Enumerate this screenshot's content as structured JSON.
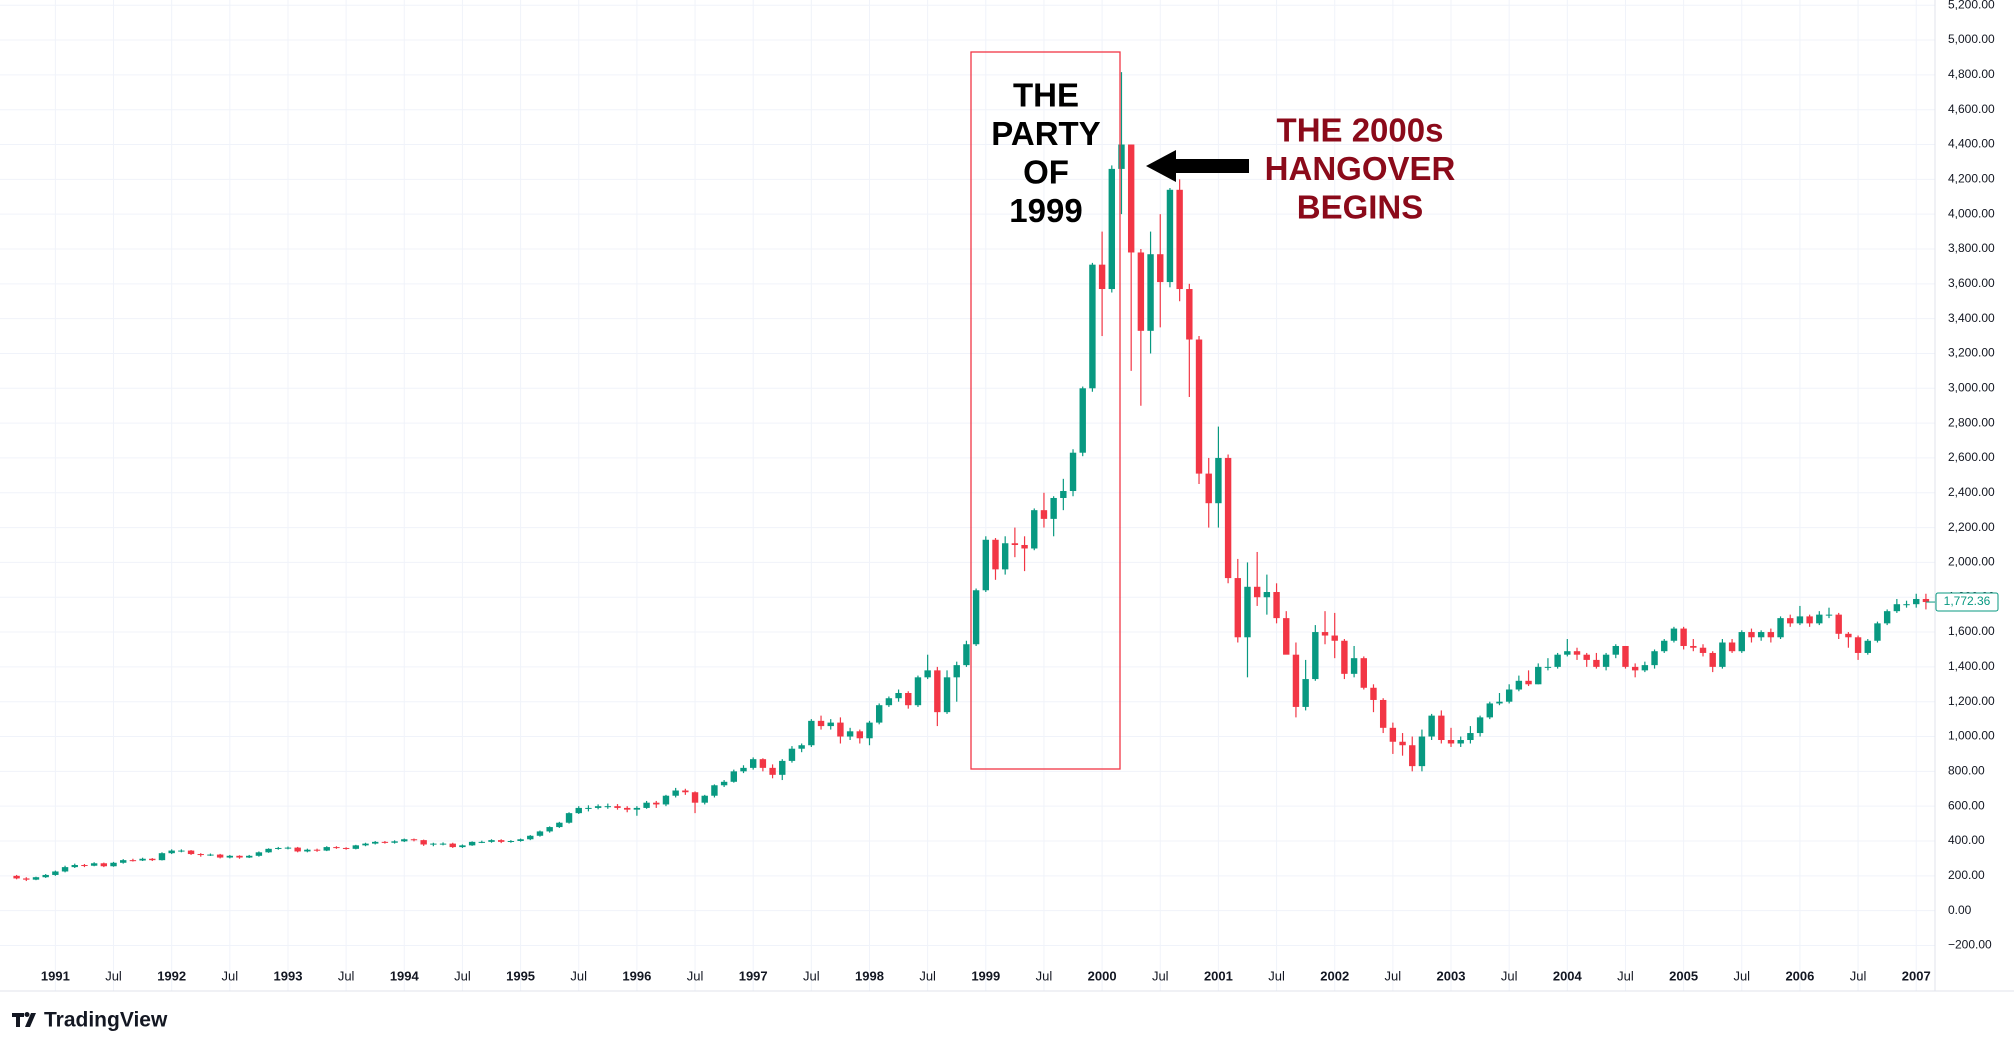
{
  "chart_data": {
    "type": "candlestick",
    "up_color": "#089981",
    "down_color": "#f23645",
    "grid": true,
    "x": [
      "1990-09",
      "1990-10",
      "1990-11",
      "1990-12",
      "1991-01",
      "1991-02",
      "1991-03",
      "1991-04",
      "1991-05",
      "1991-06",
      "1991-07",
      "1991-08",
      "1991-09",
      "1991-10",
      "1991-11",
      "1991-12",
      "1992-01",
      "1992-02",
      "1992-03",
      "1992-04",
      "1992-05",
      "1992-06",
      "1992-07",
      "1992-08",
      "1992-09",
      "1992-10",
      "1992-11",
      "1992-12",
      "1993-01",
      "1993-02",
      "1993-03",
      "1993-04",
      "1993-05",
      "1993-06",
      "1993-07",
      "1993-08",
      "1993-09",
      "1993-10",
      "1993-11",
      "1993-12",
      "1994-01",
      "1994-02",
      "1994-03",
      "1994-04",
      "1994-05",
      "1994-06",
      "1994-07",
      "1994-08",
      "1994-09",
      "1994-10",
      "1994-11",
      "1994-12",
      "1995-01",
      "1995-02",
      "1995-03",
      "1995-04",
      "1995-05",
      "1995-06",
      "1995-07",
      "1995-08",
      "1995-09",
      "1995-10",
      "1995-11",
      "1995-12",
      "1996-01",
      "1996-02",
      "1996-03",
      "1996-04",
      "1996-05",
      "1996-06",
      "1996-07",
      "1996-08",
      "1996-09",
      "1996-10",
      "1996-11",
      "1996-12",
      "1997-01",
      "1997-02",
      "1997-03",
      "1997-04",
      "1997-05",
      "1997-06",
      "1997-07",
      "1997-08",
      "1997-09",
      "1997-10",
      "1997-11",
      "1997-12",
      "1998-01",
      "1998-02",
      "1998-03",
      "1998-04",
      "1998-05",
      "1998-06",
      "1998-07",
      "1998-08",
      "1998-09",
      "1998-10",
      "1998-11",
      "1998-12",
      "1999-01",
      "1999-02",
      "1999-03",
      "1999-04",
      "1999-05",
      "1999-06",
      "1999-07",
      "1999-08",
      "1999-09",
      "1999-10",
      "1999-11",
      "1999-12",
      "2000-01",
      "2000-02",
      "2000-03",
      "2000-04",
      "2000-05",
      "2000-06",
      "2000-07",
      "2000-08",
      "2000-09",
      "2000-10",
      "2000-11",
      "2000-12",
      "2001-01",
      "2001-02",
      "2001-03",
      "2001-04",
      "2001-05",
      "2001-06",
      "2001-07",
      "2001-08",
      "2001-09",
      "2001-10",
      "2001-11",
      "2001-12",
      "2002-01",
      "2002-02",
      "2002-03",
      "2002-04",
      "2002-05",
      "2002-06",
      "2002-07",
      "2002-08",
      "2002-09",
      "2002-10",
      "2002-11",
      "2002-12",
      "2003-01",
      "2003-02",
      "2003-03",
      "2003-04",
      "2003-05",
      "2003-06",
      "2003-07",
      "2003-08",
      "2003-09",
      "2003-10",
      "2003-11",
      "2003-12",
      "2004-01",
      "2004-02",
      "2004-03",
      "2004-04",
      "2004-05",
      "2004-06",
      "2004-07",
      "2004-08",
      "2004-09",
      "2004-10",
      "2004-11",
      "2004-12",
      "2005-01",
      "2005-02",
      "2005-03",
      "2005-04",
      "2005-05",
      "2005-06",
      "2005-07",
      "2005-08",
      "2005-09",
      "2005-10",
      "2005-11",
      "2005-12",
      "2006-01",
      "2006-02",
      "2006-03",
      "2006-04",
      "2006-05",
      "2006-06",
      "2006-07",
      "2006-08",
      "2006-09",
      "2006-10",
      "2006-11",
      "2006-12",
      "2007-01",
      "2007-02"
    ],
    "open": [
      200,
      185,
      178,
      192,
      205,
      225,
      250,
      262,
      258,
      272,
      255,
      275,
      290,
      288,
      298,
      290,
      330,
      345,
      345,
      325,
      320,
      322,
      305,
      315,
      305,
      315,
      335,
      355,
      360,
      362,
      340,
      350,
      345,
      365,
      360,
      355,
      375,
      385,
      395,
      390,
      398,
      410,
      405,
      380,
      385,
      385,
      365,
      375,
      395,
      395,
      405,
      395,
      400,
      410,
      430,
      455,
      480,
      505,
      560,
      590,
      590,
      600,
      600,
      590,
      580,
      590,
      620,
      610,
      660,
      690,
      680,
      620,
      660,
      720,
      740,
      800,
      820,
      870,
      820,
      780,
      860,
      930,
      950,
      1090,
      1060,
      1080,
      1000,
      1030,
      990,
      1080,
      1180,
      1220,
      1250,
      1180,
      1340,
      1380,
      1140,
      1340,
      1410,
      1530,
      1840,
      2130,
      1960,
      2110,
      2100,
      2080,
      2300,
      2250,
      2370,
      2410,
      2630,
      3000,
      3710,
      3570,
      4260,
      4400,
      3780,
      3330,
      3770,
      3610,
      4140,
      3570,
      3280,
      2510,
      2340,
      2600,
      1910,
      1570,
      1860,
      1800,
      1830,
      1680,
      1470,
      1170,
      1330,
      1600,
      1580,
      1550,
      1360,
      1450,
      1280,
      1210,
      1050,
      970,
      950,
      830,
      1000,
      1120,
      980,
      960,
      980,
      1020,
      1110,
      1190,
      1200,
      1270,
      1320,
      1300,
      1400,
      1400,
      1470,
      1490,
      1470,
      1440,
      1400,
      1470,
      1520,
      1400,
      1380,
      1410,
      1490,
      1550,
      1620,
      1520,
      1510,
      1480,
      1400,
      1540,
      1490,
      1600,
      1570,
      1600,
      1570,
      1680,
      1650,
      1690,
      1650,
      1700,
      1700,
      1590,
      1570,
      1480,
      1550,
      1650,
      1720,
      1760,
      1760,
      1790
    ],
    "high": [
      205,
      192,
      195,
      210,
      230,
      258,
      270,
      268,
      278,
      276,
      280,
      296,
      298,
      304,
      302,
      335,
      352,
      352,
      348,
      330,
      328,
      326,
      320,
      318,
      320,
      340,
      358,
      366,
      368,
      366,
      356,
      356,
      370,
      370,
      364,
      378,
      390,
      400,
      400,
      404,
      414,
      414,
      408,
      390,
      392,
      390,
      380,
      398,
      402,
      410,
      410,
      405,
      414,
      434,
      460,
      484,
      510,
      565,
      600,
      605,
      610,
      615,
      612,
      600,
      600,
      630,
      630,
      665,
      705,
      700,
      685,
      665,
      725,
      750,
      810,
      835,
      880,
      875,
      840,
      870,
      945,
      960,
      1100,
      1120,
      1100,
      1110,
      1050,
      1040,
      1090,
      1190,
      1230,
      1270,
      1260,
      1350,
      1470,
      1400,
      1380,
      1430,
      1550,
      1850,
      2150,
      2140,
      2150,
      2200,
      2150,
      2310,
      2400,
      2380,
      2480,
      2650,
      3010,
      3720,
      3900,
      4280,
      4816,
      4400,
      3800,
      3900,
      4000,
      4150,
      4200,
      3600,
      3300,
      2600,
      2780,
      2620,
      2020,
      2000,
      2060,
      1930,
      1880,
      1720,
      1540,
      1440,
      1640,
      1720,
      1710,
      1560,
      1520,
      1460,
      1300,
      1220,
      1080,
      1020,
      1000,
      1040,
      1130,
      1150,
      1050,
      1000,
      1060,
      1120,
      1200,
      1250,
      1300,
      1350,
      1380,
      1420,
      1450,
      1480,
      1560,
      1510,
      1480,
      1480,
      1480,
      1530,
      1520,
      1420,
      1430,
      1500,
      1560,
      1630,
      1630,
      1560,
      1530,
      1490,
      1560,
      1560,
      1610,
      1620,
      1610,
      1620,
      1690,
      1700,
      1750,
      1700,
      1720,
      1740,
      1710,
      1600,
      1580,
      1560,
      1660,
      1730,
      1790,
      1780,
      1820,
      1820
    ],
    "low": [
      180,
      170,
      175,
      188,
      200,
      220,
      245,
      250,
      255,
      250,
      252,
      270,
      282,
      285,
      285,
      288,
      325,
      335,
      320,
      310,
      314,
      300,
      300,
      298,
      302,
      310,
      332,
      350,
      352,
      335,
      335,
      338,
      342,
      355,
      350,
      352,
      370,
      380,
      385,
      385,
      394,
      398,
      372,
      370,
      375,
      360,
      360,
      372,
      388,
      390,
      388,
      390,
      396,
      405,
      425,
      448,
      475,
      500,
      555,
      570,
      582,
      585,
      580,
      565,
      545,
      585,
      590,
      600,
      650,
      665,
      560,
      610,
      650,
      710,
      735,
      790,
      810,
      800,
      760,
      750,
      850,
      910,
      940,
      1040,
      1040,
      960,
      980,
      960,
      950,
      1070,
      1170,
      1200,
      1160,
      1170,
      1330,
      1060,
      1130,
      1200,
      1400,
      1520,
      1830,
      1900,
      1930,
      2030,
      1950,
      2070,
      2200,
      2150,
      2300,
      2380,
      2610,
      2980,
      3300,
      3550,
      4000,
      3100,
      2900,
      3200,
      3350,
      3580,
      3500,
      2950,
      2450,
      2200,
      2200,
      1880,
      1540,
      1340,
      1750,
      1700,
      1650,
      1500,
      1110,
      1150,
      1320,
      1530,
      1450,
      1330,
      1340,
      1270,
      1140,
      1020,
      900,
      890,
      800,
      800,
      980,
      960,
      940,
      940,
      960,
      1000,
      1100,
      1180,
      1190,
      1260,
      1290,
      1300,
      1380,
      1390,
      1460,
      1440,
      1400,
      1390,
      1380,
      1450,
      1390,
      1340,
      1370,
      1390,
      1480,
      1540,
      1500,
      1490,
      1460,
      1370,
      1390,
      1480,
      1480,
      1540,
      1550,
      1540,
      1560,
      1630,
      1640,
      1630,
      1640,
      1680,
      1560,
      1510,
      1440,
      1470,
      1540,
      1640,
      1710,
      1740,
      1740,
      1730
    ],
    "close": [
      185,
      178,
      192,
      205,
      225,
      250,
      262,
      258,
      272,
      255,
      275,
      290,
      288,
      298,
      290,
      330,
      345,
      345,
      325,
      320,
      322,
      305,
      315,
      305,
      315,
      335,
      355,
      360,
      362,
      340,
      350,
      345,
      365,
      360,
      355,
      375,
      385,
      395,
      390,
      398,
      410,
      405,
      380,
      385,
      385,
      365,
      375,
      395,
      395,
      405,
      395,
      400,
      410,
      430,
      455,
      480,
      505,
      560,
      590,
      590,
      600,
      600,
      590,
      580,
      590,
      620,
      610,
      660,
      690,
      680,
      620,
      660,
      720,
      740,
      800,
      820,
      870,
      820,
      780,
      860,
      930,
      950,
      1090,
      1060,
      1080,
      1000,
      1030,
      990,
      1080,
      1180,
      1220,
      1250,
      1180,
      1340,
      1380,
      1140,
      1340,
      1410,
      1530,
      1840,
      2130,
      1960,
      2110,
      2100,
      2080,
      2300,
      2250,
      2370,
      2410,
      2630,
      3000,
      3710,
      3570,
      4260,
      4400,
      3780,
      3330,
      3770,
      3610,
      4140,
      3570,
      3280,
      2510,
      2340,
      2600,
      1910,
      1570,
      1860,
      1800,
      1830,
      1680,
      1470,
      1170,
      1330,
      1600,
      1580,
      1550,
      1360,
      1450,
      1280,
      1210,
      1050,
      970,
      950,
      830,
      1000,
      1120,
      980,
      960,
      980,
      1020,
      1110,
      1190,
      1200,
      1270,
      1320,
      1300,
      1400,
      1400,
      1470,
      1490,
      1470,
      1440,
      1400,
      1470,
      1520,
      1400,
      1380,
      1410,
      1490,
      1550,
      1620,
      1520,
      1510,
      1480,
      1400,
      1540,
      1490,
      1600,
      1570,
      1600,
      1570,
      1680,
      1650,
      1690,
      1650,
      1700,
      1700,
      1590,
      1570,
      1480,
      1550,
      1650,
      1720,
      1760,
      1760,
      1790,
      1772.36
    ],
    "ylim": [
      -450,
      5230
    ],
    "yticks": [
      {
        "value": -200,
        "label": "−200.00"
      },
      {
        "value": 0,
        "label": "0.00"
      },
      {
        "value": 200,
        "label": "200.00"
      },
      {
        "value": 400,
        "label": "400.00"
      },
      {
        "value": 600,
        "label": "600.00"
      },
      {
        "value": 800,
        "label": "800.00"
      },
      {
        "value": 1000,
        "label": "1,000.00"
      },
      {
        "value": 1200,
        "label": "1,200.00"
      },
      {
        "value": 1400,
        "label": "1,400.00"
      },
      {
        "value": 1600,
        "label": "1,600.00"
      },
      {
        "value": 1800,
        "label": "1,800.00"
      },
      {
        "value": 2000,
        "label": "2,000.00"
      },
      {
        "value": 2200,
        "label": "2,200.00"
      },
      {
        "value": 2400,
        "label": "2,400.00"
      },
      {
        "value": 2600,
        "label": "2,600.00"
      },
      {
        "value": 2800,
        "label": "2,800.00"
      },
      {
        "value": 3000,
        "label": "3,000.00"
      },
      {
        "value": 3200,
        "label": "3,200.00"
      },
      {
        "value": 3400,
        "label": "3,400.00"
      },
      {
        "value": 3600,
        "label": "3,600.00"
      },
      {
        "value": 3800,
        "label": "3,800.00"
      },
      {
        "value": 4000,
        "label": "4,000.00"
      },
      {
        "value": 4200,
        "label": "4,200.00"
      },
      {
        "value": 4400,
        "label": "4,400.00"
      },
      {
        "value": 4600,
        "label": "4,600.00"
      },
      {
        "value": 4800,
        "label": "4,800.00"
      },
      {
        "value": 5000,
        "label": "5,000.00"
      },
      {
        "value": 5200,
        "label": "5,200.00"
      }
    ],
    "xticks": [
      {
        "value": "1991-01",
        "label": "1991"
      },
      {
        "value": "1991-07",
        "label": "Jul"
      },
      {
        "value": "1992-01",
        "label": "1992"
      },
      {
        "value": "1992-07",
        "label": "Jul"
      },
      {
        "value": "1993-01",
        "label": "1993"
      },
      {
        "value": "1993-07",
        "label": "Jul"
      },
      {
        "value": "1994-01",
        "label": "1994"
      },
      {
        "value": "1994-07",
        "label": "Jul"
      },
      {
        "value": "1995-01",
        "label": "1995"
      },
      {
        "value": "1995-07",
        "label": "Jul"
      },
      {
        "value": "1996-01",
        "label": "1996"
      },
      {
        "value": "1996-07",
        "label": "Jul"
      },
      {
        "value": "1997-01",
        "label": "1997"
      },
      {
        "value": "1997-07",
        "label": "Jul"
      },
      {
        "value": "1998-01",
        "label": "1998"
      },
      {
        "value": "1998-07",
        "label": "Jul"
      },
      {
        "value": "1999-01",
        "label": "1999"
      },
      {
        "value": "1999-07",
        "label": "Jul"
      },
      {
        "value": "2000-01",
        "label": "2000"
      },
      {
        "value": "2000-07",
        "label": "Jul"
      },
      {
        "value": "2001-01",
        "label": "2001"
      },
      {
        "value": "2001-07",
        "label": "Jul"
      },
      {
        "value": "2002-01",
        "label": "2002"
      },
      {
        "value": "2002-07",
        "label": "Jul"
      },
      {
        "value": "2003-01",
        "label": "2003"
      },
      {
        "value": "2003-07",
        "label": "Jul"
      },
      {
        "value": "2004-01",
        "label": "2004"
      },
      {
        "value": "2004-07",
        "label": "Jul"
      },
      {
        "value": "2005-01",
        "label": "2005"
      },
      {
        "value": "2005-07",
        "label": "Jul"
      },
      {
        "value": "2006-01",
        "label": "2006"
      },
      {
        "value": "2006-07",
        "label": "Jul"
      },
      {
        "value": "2007-01",
        "label": "2007"
      }
    ],
    "last_price": {
      "value": 1772.36,
      "label": "1,772.36"
    },
    "box_text": [
      "THE",
      "PARTY",
      "OF",
      "1999"
    ],
    "arrow_text": [
      "THE 2000s",
      "HANGOVER",
      "BEGINS"
    ],
    "arrow_text_color": "#8b0a1a"
  },
  "watermark": "TradingView"
}
